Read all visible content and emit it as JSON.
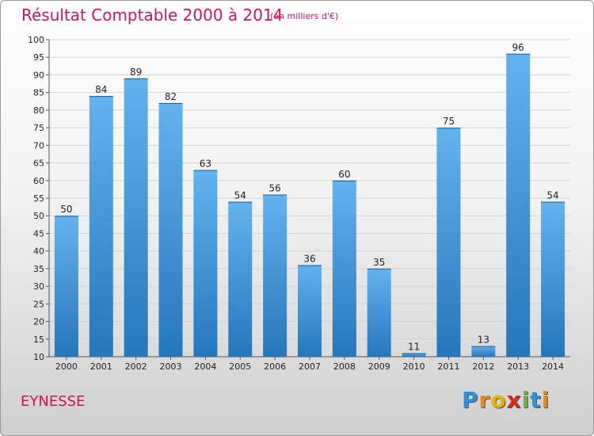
{
  "header": {
    "title": "Résultat Comptable 2000 à 2014",
    "subtitle": "(en milliers d'€)"
  },
  "footer": {
    "commune": "EYNESSE",
    "logo_letters": [
      "P",
      "r",
      "o",
      "x",
      "i",
      "t",
      "i"
    ],
    "logo_colors": [
      "#2f8fd8",
      "#e88a1a",
      "#e2b400",
      "#d9261c",
      "#6db33f",
      "#2f8fd8",
      "#e88a1a"
    ]
  },
  "chart_data": {
    "type": "bar",
    "title": "Résultat Comptable 2000 à 2014",
    "subtitle": "(en milliers d'€)",
    "categories": [
      "2000",
      "2001",
      "2002",
      "2003",
      "2004",
      "2005",
      "2006",
      "2007",
      "2008",
      "2009",
      "2010",
      "2011",
      "2012",
      "2013",
      "2014"
    ],
    "values": [
      50,
      84,
      89,
      82,
      63,
      54,
      56,
      36,
      60,
      35,
      11,
      75,
      13,
      96,
      54
    ],
    "ylim": [
      10,
      100
    ],
    "yticks": [
      10,
      15,
      20,
      25,
      30,
      35,
      40,
      45,
      50,
      55,
      60,
      65,
      70,
      75,
      80,
      85,
      90,
      95,
      100
    ],
    "grid": "horizontal",
    "bar_color_top": "#62b3ee",
    "bar_color_bottom": "#2577bc",
    "xlabel": "",
    "ylabel": ""
  }
}
